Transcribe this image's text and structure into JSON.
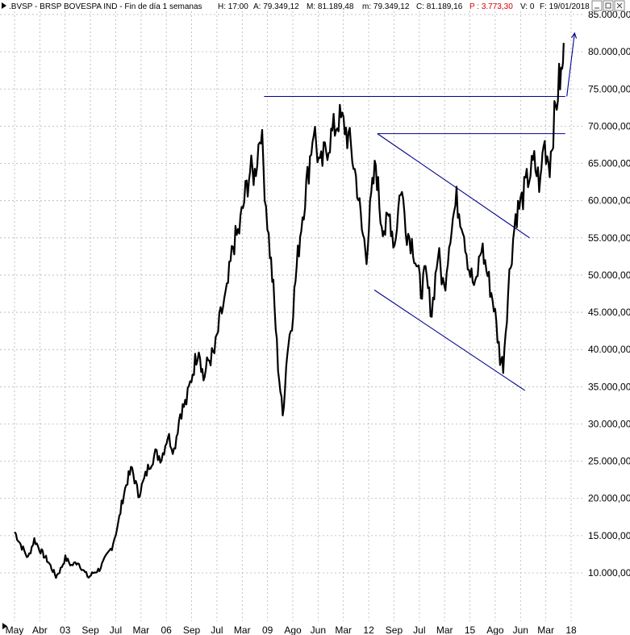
{
  "header": {
    "symbol": ".BVSP - BRSP BOVESPA IND - Fin de día 1 semanas",
    "high": "H: 17:00",
    "a": "A: 79.349,12",
    "m": "M: 81.189,48",
    "min": "m: 79.349,12",
    "c": "C: 81.189,16",
    "p": "P : 3.773,30",
    "v": "V: 0",
    "f": "F: 19/01/2018",
    "window_controls": [
      "minimize-icon",
      "restore-icon",
      "close-icon"
    ]
  },
  "colors": {
    "price": "#000000",
    "trendline": "#00008b",
    "grid": "#b4b4b4",
    "highlight_text": "#d40000"
  },
  "chart_data": {
    "type": "line",
    "title": "",
    "xlabel": "",
    "ylabel": "",
    "ylim": [
      5000,
      85000
    ],
    "y_ticks": [
      85000,
      80000,
      75000,
      70000,
      65000,
      60000,
      55000,
      50000,
      45000,
      40000,
      35000,
      30000,
      25000,
      20000,
      15000,
      10000
    ],
    "y_tick_labels": [
      "85.000,00",
      "80.000,00",
      "75.000,00",
      "70.000,00",
      "65.000,00",
      "60.000,00",
      "55.000,00",
      "50.000,00",
      "45.000,00",
      "40.000,00",
      "35.000,00",
      "30.000,00",
      "25.000,00",
      "20.000,00",
      "15.000,00",
      "10.000,00"
    ],
    "x_tick_labels": [
      "May",
      "Abr",
      "03",
      "Sep",
      "Jul",
      "Mar",
      "06",
      "Sep",
      "Jul",
      "Mar",
      "09",
      "Ago",
      "Jun",
      "Mar",
      "12",
      "Sep",
      "Jul",
      "Mar",
      "15",
      "Ago",
      "Jun",
      "Mar",
      "18"
    ],
    "grid": true,
    "legend": "none",
    "series": [
      {
        "x": [
          2000.37,
          2000.6,
          2000.8,
          2001.0,
          2001.2,
          2001.45,
          2001.7,
          2001.85,
          2002.0,
          2002.2,
          2002.4,
          2002.6,
          2002.75,
          2002.9,
          2003.1,
          2003.3,
          2003.5,
          2003.7,
          2003.85,
          2004.0,
          2004.15,
          2004.35,
          2004.5,
          2004.7,
          2004.9,
          2005.1,
          2005.3,
          2005.5,
          2005.7,
          2005.9,
          2006.1,
          2006.3,
          2006.45,
          2006.6,
          2006.8,
          2007.0,
          2007.2,
          2007.4,
          2007.6,
          2007.8,
          2007.95,
          2008.1,
          2008.3,
          2008.42,
          2008.55,
          2008.7,
          2008.85,
          2009.0,
          2009.15,
          2009.3,
          2009.45,
          2009.6,
          2009.8,
          2010.0,
          2010.2,
          2010.4,
          2010.6,
          2010.8,
          2011.0,
          2011.2,
          2011.4,
          2011.55,
          2011.7,
          2011.85,
          2012.0,
          2012.15,
          2012.3,
          2012.45,
          2012.6,
          2012.8,
          2013.0,
          2013.2,
          2013.45,
          2013.6,
          2013.8,
          2014.0,
          2014.2,
          2014.4,
          2014.6,
          2014.8,
          2015.0,
          2015.2,
          2015.4,
          2015.6,
          2015.8,
          2016.0,
          2016.1,
          2016.3,
          2016.5,
          2016.7,
          2016.9,
          2017.1,
          2017.3,
          2017.4,
          2017.6,
          2017.75,
          2017.9,
          2018.0,
          2018.05
        ],
        "y": [
          15500,
          13500,
          12000,
          14500,
          13000,
          11500,
          9500,
          10500,
          12000,
          11000,
          11500,
          10200,
          9400,
          10000,
          10500,
          12000,
          13500,
          16500,
          20000,
          22500,
          24000,
          20500,
          22000,
          24500,
          26000,
          25500,
          28500,
          26500,
          31500,
          33000,
          37000,
          40500,
          36000,
          38500,
          39500,
          44500,
          47500,
          54000,
          56000,
          61000,
          64000,
          63500,
          70000,
          62000,
          55000,
          48000,
          38000,
          31000,
          40000,
          44000,
          51000,
          57000,
          63000,
          70000,
          64000,
          67000,
          69000,
          71000,
          70000,
          67000,
          62000,
          56000,
          53000,
          60000,
          65000,
          58000,
          56000,
          58000,
          54000,
          62000,
          56000,
          54000,
          48000,
          50000,
          45000,
          53000,
          48000,
          56000,
          60000,
          57000,
          51000,
          48000,
          54000,
          50000,
          46000,
          39000,
          38000,
          50000,
          58000,
          60000,
          63000,
          65000,
          62000,
          68000,
          65000,
          71000,
          76000,
          77000,
          81189
        ]
      }
    ],
    "annotations": [
      {
        "type": "horizontal-line",
        "y": 74000,
        "x_from": 2008.4,
        "x_to": 2018.1
      },
      {
        "type": "horizontal-line",
        "y": 69000,
        "x_from": 2012.05,
        "x_to": 2018.1
      },
      {
        "type": "trend-line",
        "from": [
          2012.05,
          69000
        ],
        "to": [
          2016.95,
          55000
        ]
      },
      {
        "type": "trend-line",
        "from": [
          2011.95,
          48000
        ],
        "to": [
          2016.8,
          34500
        ]
      },
      {
        "type": "projection-arrow",
        "from": [
          2018.15,
          74000
        ],
        "to": [
          2018.4,
          82500
        ]
      }
    ]
  }
}
